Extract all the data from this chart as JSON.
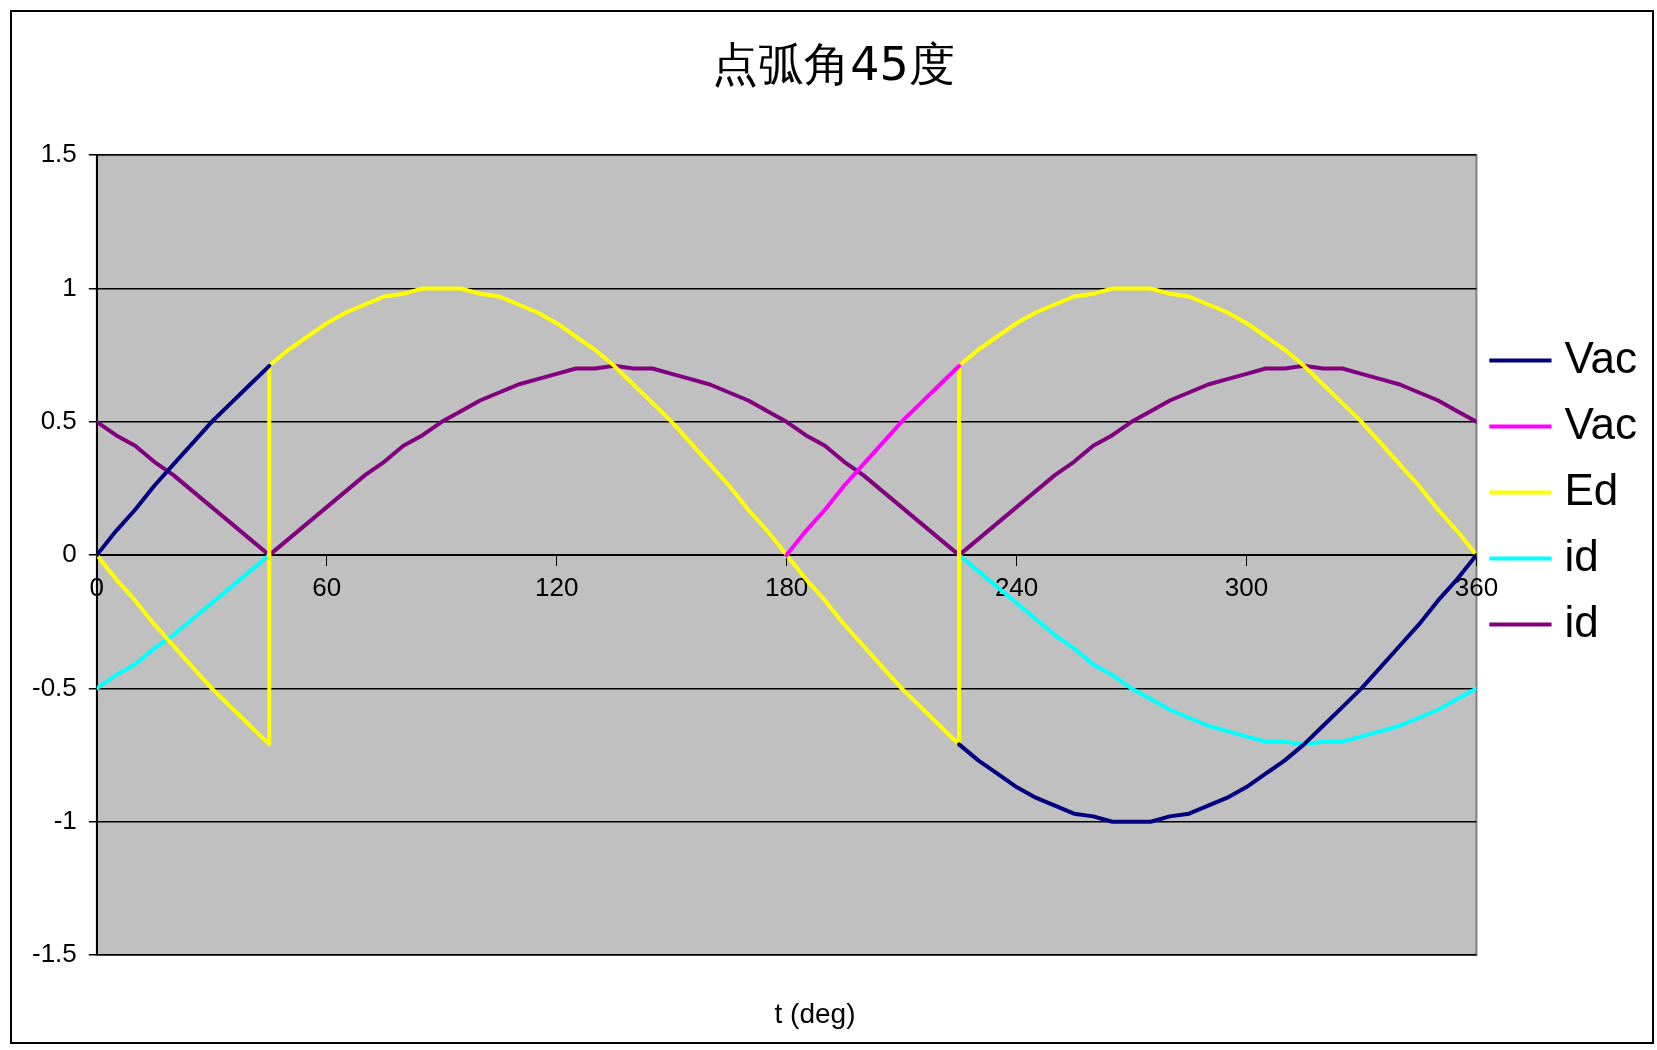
{
  "chart_data": {
    "type": "line",
    "title": "点弧角45度",
    "xlabel": "t (deg)",
    "x": [
      0,
      5,
      10,
      15,
      20,
      25,
      30,
      35,
      40,
      45,
      50,
      55,
      60,
      65,
      70,
      75,
      80,
      85,
      90,
      95,
      100,
      105,
      110,
      115,
      120,
      125,
      130,
      135,
      140,
      145,
      150,
      155,
      160,
      165,
      170,
      175,
      180,
      185,
      190,
      195,
      200,
      205,
      210,
      215,
      220,
      225,
      230,
      235,
      240,
      245,
      250,
      255,
      260,
      265,
      270,
      275,
      280,
      285,
      290,
      295,
      300,
      305,
      310,
      315,
      320,
      325,
      330,
      335,
      340,
      345,
      350,
      355,
      360
    ],
    "xlim": [
      0,
      360
    ],
    "xticks": [
      0,
      60,
      120,
      180,
      240,
      300,
      360
    ],
    "ylim": [
      -1.5,
      1.5
    ],
    "yticks": [
      -1.5,
      -1,
      -0.5,
      0,
      0.5,
      1,
      1.5
    ],
    "grid": "y",
    "legend": "right",
    "marker": "none",
    "line_style": "solid",
    "series": [
      {
        "name": "Vac",
        "color": "#000080",
        "values": [
          0,
          0.09,
          0.17,
          0.26,
          0.34,
          0.42,
          0.5,
          0.57,
          0.64,
          0.71,
          null,
          null,
          null,
          null,
          null,
          null,
          null,
          null,
          null,
          null,
          null,
          null,
          null,
          null,
          null,
          null,
          null,
          null,
          null,
          null,
          null,
          null,
          null,
          null,
          null,
          null,
          null,
          null,
          null,
          null,
          null,
          null,
          null,
          null,
          null,
          -0.71,
          -0.77,
          -0.82,
          -0.87,
          -0.91,
          -0.94,
          -0.97,
          -0.98,
          -1,
          -1,
          -1,
          -0.98,
          -0.97,
          -0.94,
          -0.91,
          -0.87,
          -0.82,
          -0.77,
          -0.71,
          -0.64,
          -0.57,
          -0.5,
          -0.42,
          -0.34,
          -0.26,
          -0.17,
          -0.09,
          0
        ]
      },
      {
        "name": "Vac",
        "color": "#ff00ff",
        "values": [
          null,
          null,
          null,
          null,
          null,
          null,
          null,
          null,
          null,
          null,
          null,
          null,
          null,
          null,
          null,
          null,
          null,
          null,
          null,
          null,
          null,
          null,
          null,
          null,
          null,
          null,
          null,
          null,
          null,
          null,
          null,
          null,
          null,
          null,
          null,
          null,
          0,
          0.09,
          0.17,
          0.26,
          0.34,
          0.42,
          0.5,
          0.57,
          0.64,
          0.71,
          null,
          null,
          null,
          null,
          null,
          null,
          null,
          null,
          null,
          null,
          null,
          null,
          null,
          null,
          null,
          null,
          null,
          null,
          null,
          null,
          null,
          null,
          null,
          null,
          null,
          null,
          null
        ]
      },
      {
        "name": "Ed",
        "color": "#ffff00",
        "x": [
          0,
          5,
          10,
          15,
          20,
          25,
          30,
          35,
          40,
          45,
          45,
          50,
          55,
          60,
          65,
          70,
          75,
          80,
          85,
          90,
          95,
          100,
          105,
          110,
          115,
          120,
          125,
          130,
          135,
          140,
          145,
          150,
          155,
          160,
          165,
          170,
          175,
          180,
          185,
          190,
          195,
          200,
          205,
          210,
          215,
          220,
          225,
          225,
          230,
          235,
          240,
          245,
          250,
          255,
          260,
          265,
          270,
          275,
          280,
          285,
          290,
          295,
          300,
          305,
          310,
          315,
          320,
          325,
          330,
          335,
          340,
          345,
          350,
          355,
          360
        ],
        "values": [
          0,
          -0.09,
          -0.17,
          -0.26,
          -0.34,
          -0.42,
          -0.5,
          -0.57,
          -0.64,
          -0.71,
          0.71,
          0.77,
          0.82,
          0.87,
          0.91,
          0.94,
          0.97,
          0.98,
          1,
          1,
          1,
          0.98,
          0.97,
          0.94,
          0.91,
          0.87,
          0.82,
          0.77,
          0.71,
          0.64,
          0.57,
          0.5,
          0.42,
          0.34,
          0.26,
          0.17,
          0.09,
          0,
          -0.09,
          -0.17,
          -0.26,
          -0.34,
          -0.42,
          -0.5,
          -0.57,
          -0.64,
          -0.71,
          0.71,
          0.77,
          0.82,
          0.87,
          0.91,
          0.94,
          0.97,
          0.98,
          1,
          1,
          1,
          0.98,
          0.97,
          0.94,
          0.91,
          0.87,
          0.82,
          0.77,
          0.71,
          0.64,
          0.57,
          0.5,
          0.42,
          0.34,
          0.26,
          0.17,
          0.09,
          0
        ]
      },
      {
        "name": "id",
        "color": "#00ffff",
        "values": [
          -0.5,
          -0.45,
          -0.41,
          -0.35,
          -0.3,
          -0.24,
          -0.18,
          -0.12,
          -0.06,
          0,
          null,
          null,
          null,
          null,
          null,
          null,
          null,
          null,
          null,
          null,
          null,
          null,
          null,
          null,
          null,
          null,
          null,
          null,
          null,
          null,
          null,
          null,
          null,
          null,
          null,
          null,
          null,
          null,
          null,
          null,
          null,
          null,
          null,
          null,
          null,
          0,
          -0.06,
          -0.12,
          -0.18,
          -0.24,
          -0.3,
          -0.35,
          -0.41,
          -0.45,
          -0.5,
          -0.54,
          -0.58,
          -0.61,
          -0.64,
          -0.66,
          -0.68,
          -0.7,
          -0.7,
          -0.71,
          -0.7,
          -0.7,
          -0.68,
          -0.66,
          -0.64,
          -0.61,
          -0.58,
          -0.54,
          -0.5
        ]
      },
      {
        "name": "id",
        "color": "#800080",
        "values": [
          0.5,
          0.45,
          0.41,
          0.35,
          0.3,
          0.24,
          0.18,
          0.12,
          0.06,
          0,
          0.06,
          0.12,
          0.18,
          0.24,
          0.3,
          0.35,
          0.41,
          0.45,
          0.5,
          0.54,
          0.58,
          0.61,
          0.64,
          0.66,
          0.68,
          0.7,
          0.7,
          0.71,
          0.7,
          0.7,
          0.68,
          0.66,
          0.64,
          0.61,
          0.58,
          0.54,
          0.5,
          0.45,
          0.41,
          0.35,
          0.3,
          0.24,
          0.18,
          0.12,
          0.06,
          0,
          0.06,
          0.12,
          0.18,
          0.24,
          0.3,
          0.35,
          0.41,
          0.45,
          0.5,
          0.54,
          0.58,
          0.61,
          0.64,
          0.66,
          0.68,
          0.7,
          0.7,
          0.71,
          0.7,
          0.7,
          0.68,
          0.66,
          0.64,
          0.61,
          0.58,
          0.54,
          0.5
        ]
      }
    ]
  }
}
